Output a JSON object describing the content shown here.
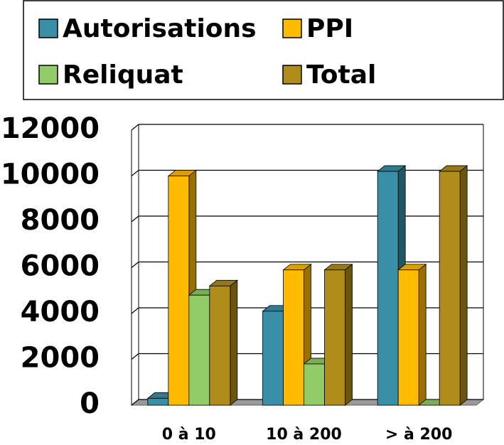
{
  "chart_data": {
    "type": "bar3d",
    "categories": [
      "0 à 10",
      "10 à 200",
      "> à 200"
    ],
    "series": [
      {
        "name": "Autorisations",
        "color": "#3a8fa8",
        "values": [
          300,
          4100,
          10200
        ]
      },
      {
        "name": "PPI",
        "color": "#ffbb00",
        "values": [
          10000,
          5900,
          5900
        ]
      },
      {
        "name": "Reliquat",
        "color": "#92cc66",
        "values": [
          4800,
          1800,
          0
        ]
      },
      {
        "name": "Total",
        "color": "#b08d1a",
        "values": [
          5200,
          5900,
          10200
        ]
      }
    ],
    "ylim": [
      0,
      12000
    ],
    "yticks": [
      0,
      2000,
      4000,
      6000,
      8000,
      10000,
      12000
    ],
    "grid": true,
    "legend": "top"
  }
}
